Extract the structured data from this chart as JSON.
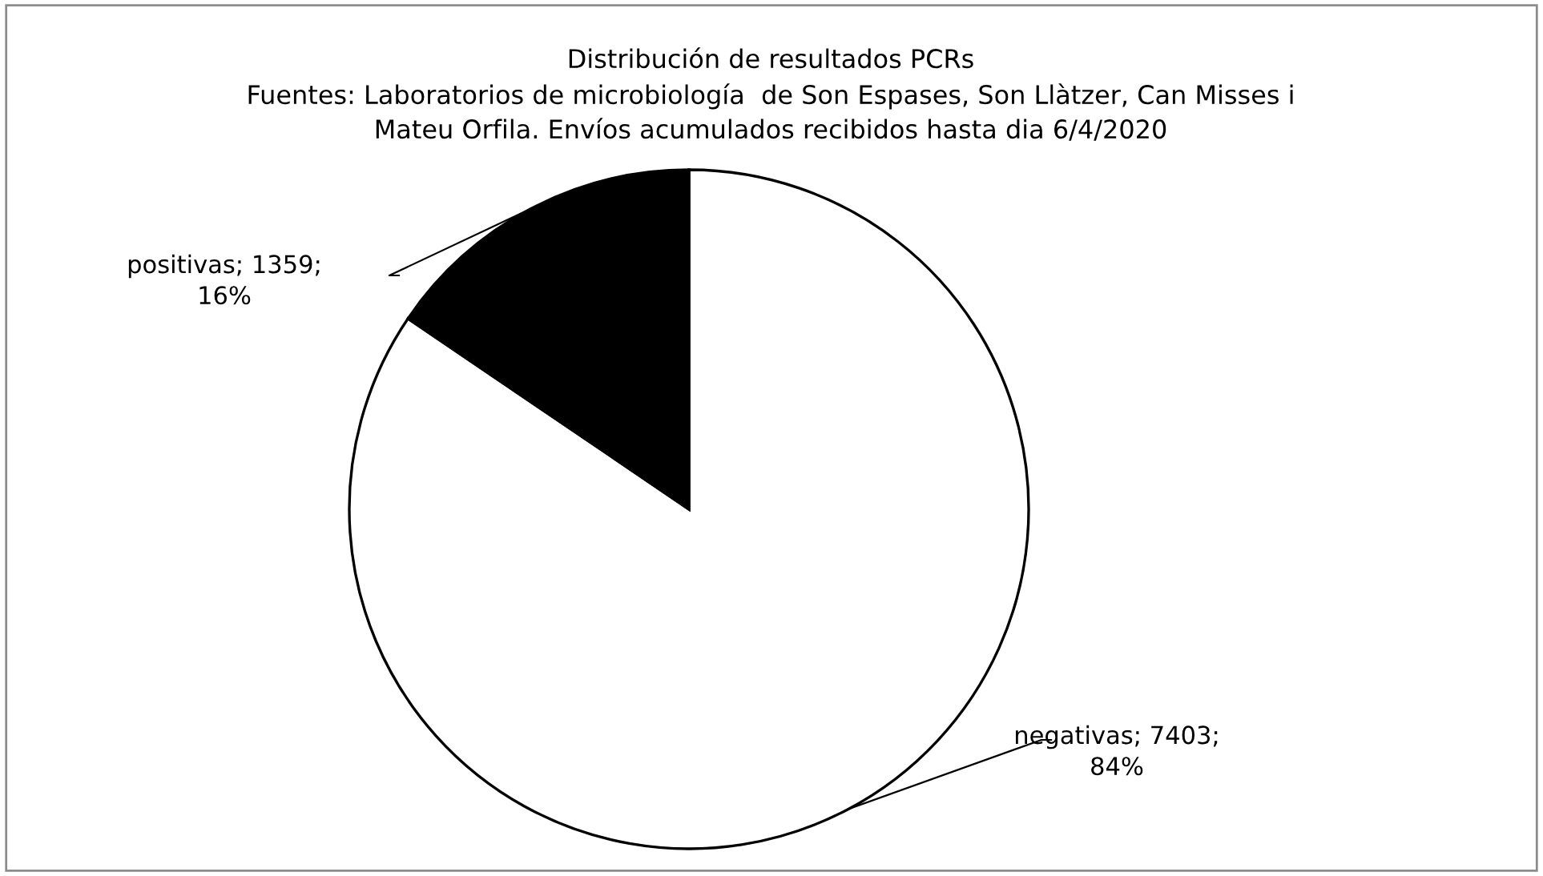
{
  "chart_data": {
    "type": "pie",
    "title": "Distribución de resultados PCRs\nFuentes: Laboratorios de microbiología  de Son Espases, Son Llàtzer, Can Misses i\nMateu Orfila. Envíos acumulados recibidos hasta dia 6/4/2020",
    "categories": [
      "negativas",
      "positivas"
    ],
    "values": [
      7403,
      1359
    ],
    "value_labels": [
      "7403;\n84%",
      "1359;\n16%"
    ],
    "colors": [
      "#ffffff",
      "#000000"
    ],
    "legend": false
  }
}
